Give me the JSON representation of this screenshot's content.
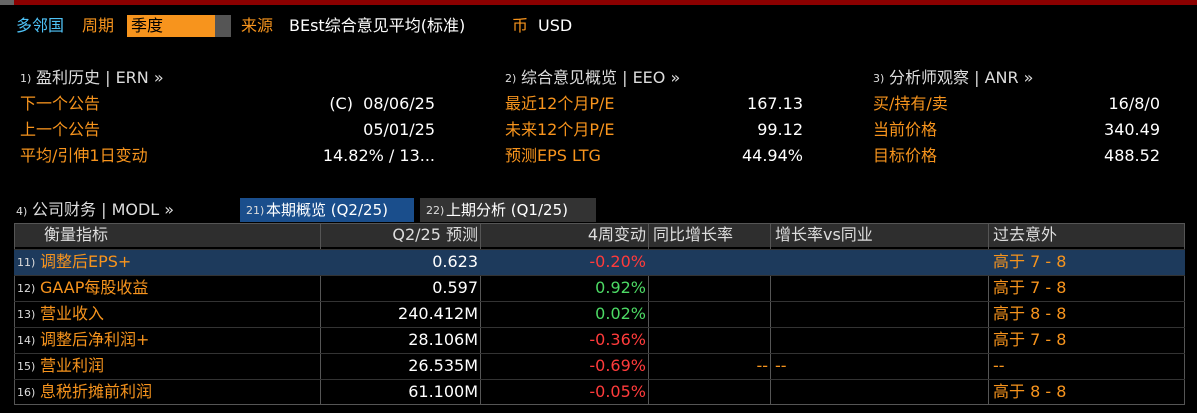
{
  "header": {
    "company": "多邻国",
    "period_label": "周期",
    "period_value": "季度",
    "source_label": "来源",
    "source_value": "BEst综合意见平均(标准)",
    "currency_label": "币",
    "currency_value": "USD"
  },
  "sections": [
    {
      "number": "1)",
      "title": "盈利历史 | ERN »",
      "rows": [
        {
          "label": "下一个公告",
          "value": "(C)  08/06/25"
        },
        {
          "label": "上一个公告",
          "value": "05/01/25"
        },
        {
          "label": "平均/引伸1日变动",
          "value": "14.82% / 13..."
        }
      ]
    },
    {
      "number": "2)",
      "title": "综合意见概览 | EEO »",
      "rows": [
        {
          "label": "最近12个月P/E",
          "value": "167.13"
        },
        {
          "label": "未来12个月P/E",
          "value": "99.12"
        },
        {
          "label": "预测EPS LTG",
          "value": "44.94%"
        }
      ]
    },
    {
      "number": "3)",
      "title": "分析师观察 | ANR »",
      "rows": [
        {
          "label": "买/持有/卖",
          "value": "16/8/0"
        },
        {
          "label": "当前价格",
          "value": "340.49"
        },
        {
          "label": "目标价格",
          "value": "488.52"
        }
      ]
    }
  ],
  "financials": {
    "number": "4)",
    "title": "公司财务 | MODL »",
    "tabs": [
      {
        "number": "21)",
        "label": "本期概览 (Q2/25)"
      },
      {
        "number": "22)",
        "label": "上期分析 (Q1/25)"
      }
    ]
  },
  "table": {
    "columns": [
      "衡量指标",
      "Q2/25 预测",
      "4周变动",
      "同比增长率",
      "增长率vs同业",
      "过去意外"
    ],
    "rows": [
      {
        "number": "11)",
        "metric": "调整后EPS+",
        "estimate": "0.623",
        "change": "-0.20%",
        "surprise": "高于 7 - 8"
      },
      {
        "number": "12)",
        "metric": "GAAP每股收益",
        "estimate": "0.597",
        "change": "0.92%",
        "surprise": "高于 7 - 8"
      },
      {
        "number": "13)",
        "metric": "营业收入",
        "estimate": "240.412M",
        "change": "0.02%",
        "surprise": "高于 8 - 8"
      },
      {
        "number": "14)",
        "metric": "调整后净利润+",
        "estimate": "28.106M",
        "change": "-0.36%",
        "surprise": "高于 7 - 8"
      },
      {
        "number": "15)",
        "metric": "营业利润",
        "estimate": "26.535M",
        "change": "-0.69%",
        "yoy": "--",
        "vs_peers": "--",
        "surprise": "--"
      },
      {
        "number": "16)",
        "metric": "息税折摊前利润",
        "estimate": "61.100M",
        "change": "-0.05%",
        "surprise": "高于 8 - 8"
      }
    ]
  }
}
